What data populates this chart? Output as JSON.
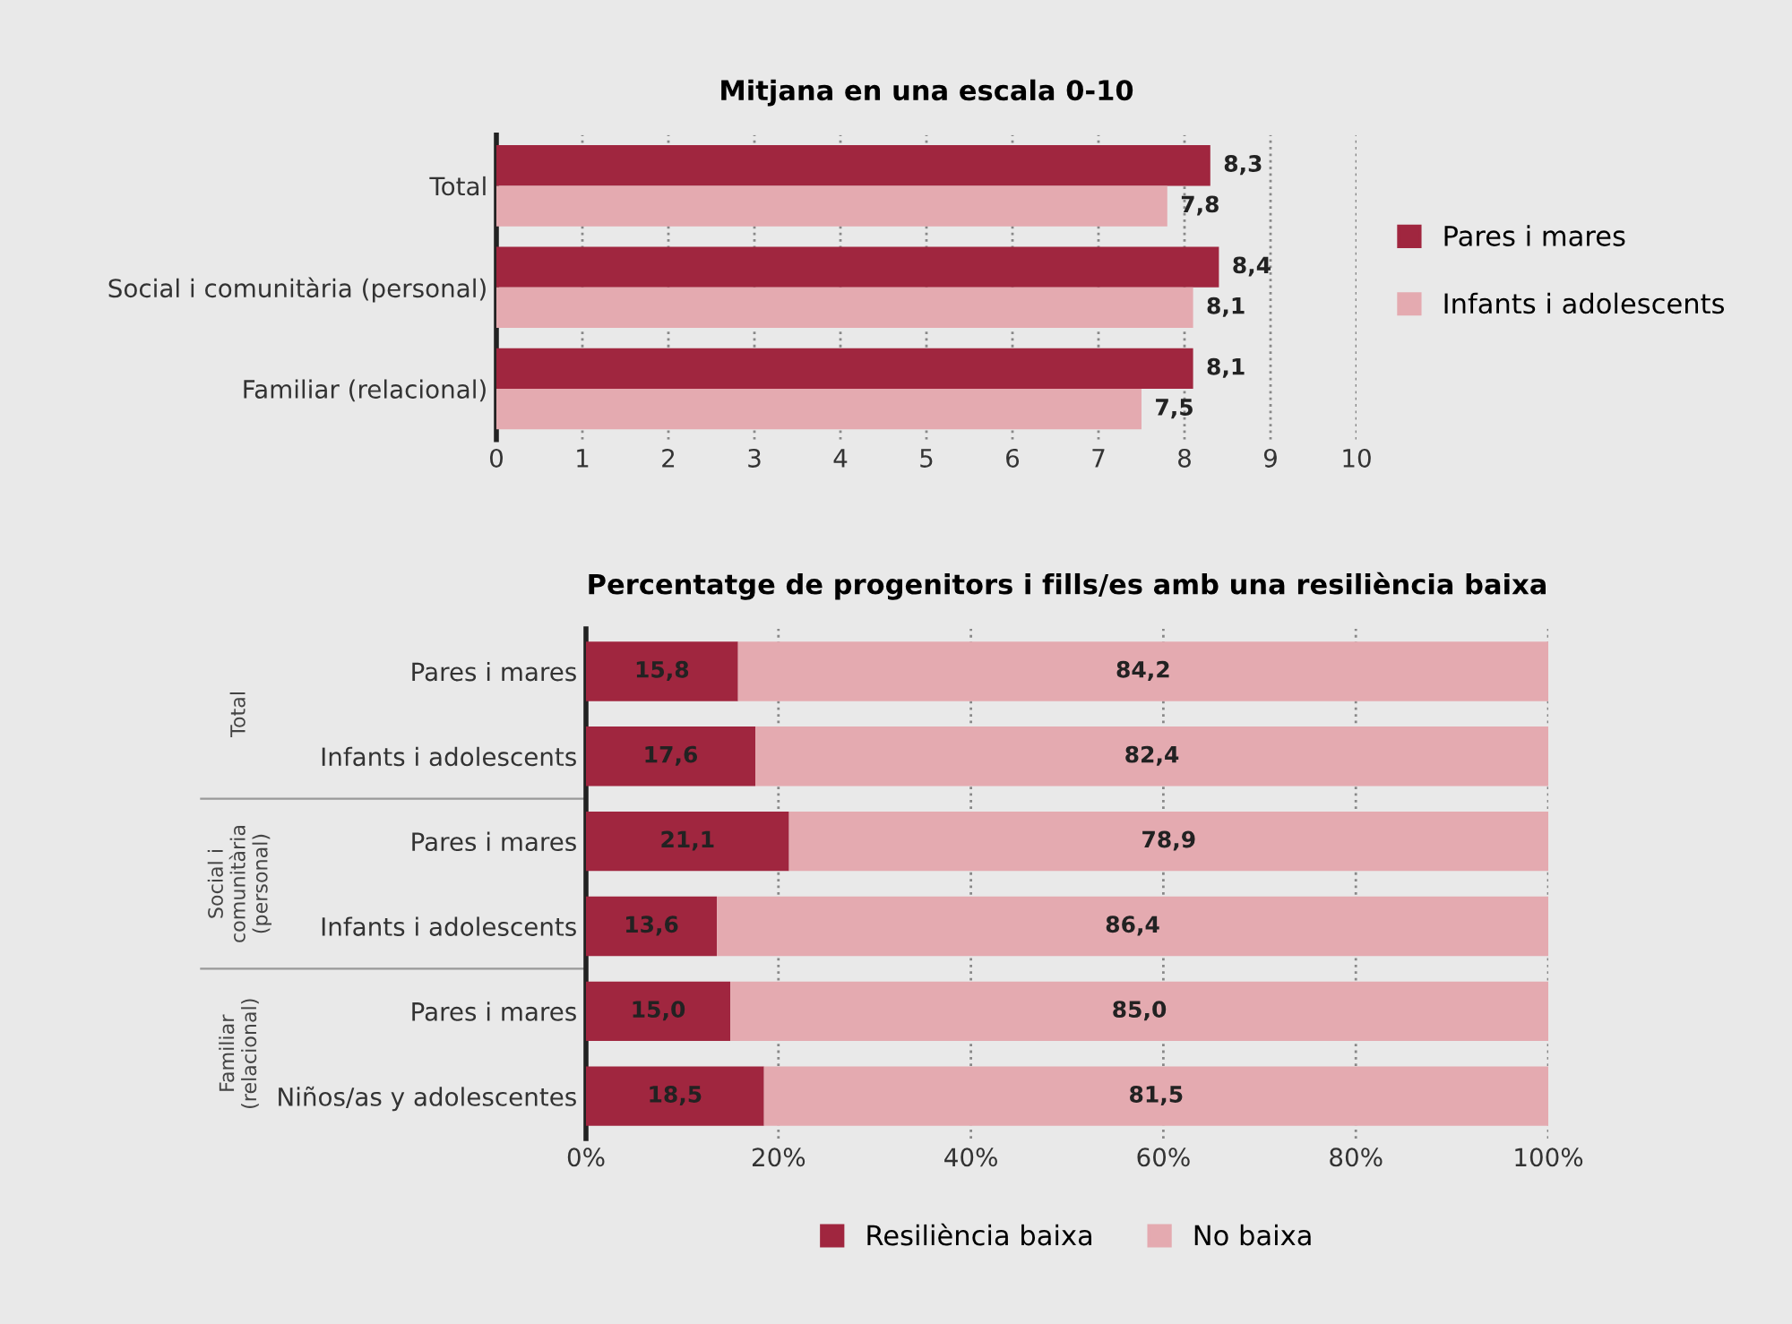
{
  "chart_data": [
    {
      "type": "bar",
      "orientation": "horizontal",
      "title": "Mitjana en una escala 0-10",
      "categories": [
        "Total",
        "Social i comunitària (personal)",
        "Familiar (relacional)"
      ],
      "series": [
        {
          "name": "Pares i mares",
          "color": "#a0263f",
          "values": [
            8.3,
            8.4,
            8.1
          ],
          "value_labels": [
            "8,3",
            "8,4",
            "8,1"
          ]
        },
        {
          "name": "Infants i adolescents",
          "color": "#e4aab0",
          "values": [
            7.8,
            8.1,
            7.5
          ],
          "value_labels": [
            "7,8",
            "8,1",
            "7,5"
          ]
        }
      ],
      "xlim": [
        0,
        10
      ],
      "xticks": [
        0,
        1,
        2,
        3,
        4,
        5,
        6,
        7,
        8,
        9,
        10
      ],
      "grid": "x",
      "legend": "right"
    },
    {
      "type": "bar",
      "orientation": "horizontal",
      "stacked": true,
      "title": "Percentatge de progenitors i fills/es amb una resiliència baixa",
      "categories": [
        "Pares i mares",
        "Infants i adolescents",
        "Pares i mares",
        "Infants i adolescents",
        "Pares i mares",
        "Niños/as y adolescentes"
      ],
      "series": [
        {
          "name": "Resiliència baixa",
          "color": "#a0263f",
          "values": [
            15.8,
            17.6,
            21.1,
            13.6,
            15.0,
            18.5
          ],
          "value_labels": [
            "15,8",
            "17,6",
            "21,1",
            "13,6",
            "15,0",
            "18,5"
          ]
        },
        {
          "name": "No baixa",
          "color": "#e4aab0",
          "values": [
            84.2,
            82.4,
            78.9,
            86.4,
            85.0,
            81.5
          ],
          "value_labels": [
            "84,2",
            "82,4",
            "78,9",
            "86,4",
            "85,0",
            "81,5"
          ]
        }
      ],
      "annotations": [
        "Total",
        "Social i\ncomunitària\n(personal)",
        "Familiar\n(relacional)"
      ],
      "xlim": [
        0,
        100
      ],
      "xticks": [
        {
          "value": 0,
          "label": "0%"
        },
        {
          "value": 20,
          "label": "20%"
        },
        {
          "value": 40,
          "label": "40%"
        },
        {
          "value": 60,
          "label": "60%"
        },
        {
          "value": 80,
          "label": "80%"
        },
        {
          "value": 100,
          "label": "100%"
        }
      ],
      "grid": "x",
      "legend": "bottom"
    }
  ]
}
